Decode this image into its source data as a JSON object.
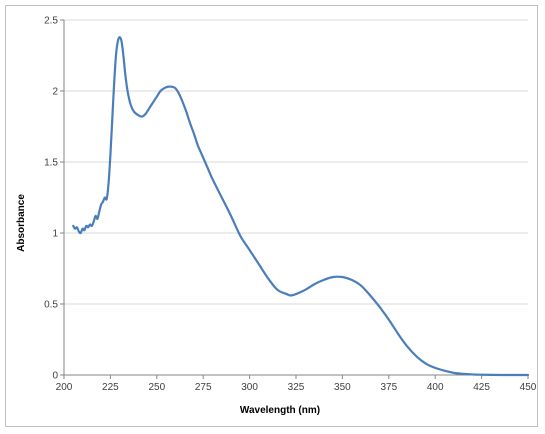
{
  "chart_data": {
    "type": "line",
    "title": "",
    "xlabel": "Wavelength (nm)",
    "ylabel": "Absorbance",
    "xlim": [
      200,
      450
    ],
    "ylim": [
      0,
      2.5
    ],
    "x_ticks": [
      "200",
      "225",
      "250",
      "275",
      "300",
      "325",
      "350",
      "375",
      "400",
      "425",
      "450"
    ],
    "y_ticks": [
      "0",
      "0.5",
      "1",
      "1.5",
      "2",
      "2.5"
    ],
    "grid": "horizontal",
    "legend": "none",
    "series": [
      {
        "color": "#4a7ebb",
        "x": [
          205,
          206,
          207,
          208,
          209,
          210,
          211,
          212,
          213,
          214,
          215,
          216,
          217,
          218,
          219,
          220,
          221,
          222,
          223,
          224,
          225,
          226,
          227,
          228,
          229,
          230,
          231,
          232,
          233,
          234,
          235,
          236,
          237,
          238,
          240,
          242,
          244,
          246,
          248,
          250,
          252,
          254,
          256,
          258,
          260,
          262,
          264,
          266,
          268,
          270,
          272,
          274,
          276,
          278,
          280,
          285,
          290,
          295,
          300,
          305,
          310,
          315,
          320,
          322,
          325,
          330,
          335,
          340,
          345,
          350,
          355,
          360,
          365,
          370,
          375,
          380,
          385,
          390,
          395,
          400,
          405,
          410,
          415,
          420,
          425,
          430,
          440,
          450
        ],
        "values": [
          1.05,
          1.03,
          1.04,
          1.01,
          1.0,
          1.03,
          1.02,
          1.05,
          1.04,
          1.06,
          1.05,
          1.08,
          1.12,
          1.1,
          1.15,
          1.2,
          1.22,
          1.25,
          1.24,
          1.35,
          1.55,
          1.8,
          2.05,
          2.25,
          2.35,
          2.38,
          2.35,
          2.25,
          2.12,
          2.02,
          1.95,
          1.9,
          1.87,
          1.85,
          1.83,
          1.82,
          1.84,
          1.88,
          1.92,
          1.96,
          2.0,
          2.02,
          2.03,
          2.03,
          2.02,
          1.98,
          1.92,
          1.85,
          1.77,
          1.7,
          1.62,
          1.56,
          1.5,
          1.44,
          1.38,
          1.25,
          1.12,
          0.98,
          0.88,
          0.78,
          0.68,
          0.6,
          0.57,
          0.56,
          0.57,
          0.6,
          0.64,
          0.67,
          0.69,
          0.69,
          0.67,
          0.63,
          0.56,
          0.48,
          0.39,
          0.29,
          0.2,
          0.13,
          0.08,
          0.05,
          0.03,
          0.015,
          0.008,
          0.004,
          0.002,
          0.001,
          0.0,
          0.0
        ]
      }
    ]
  }
}
